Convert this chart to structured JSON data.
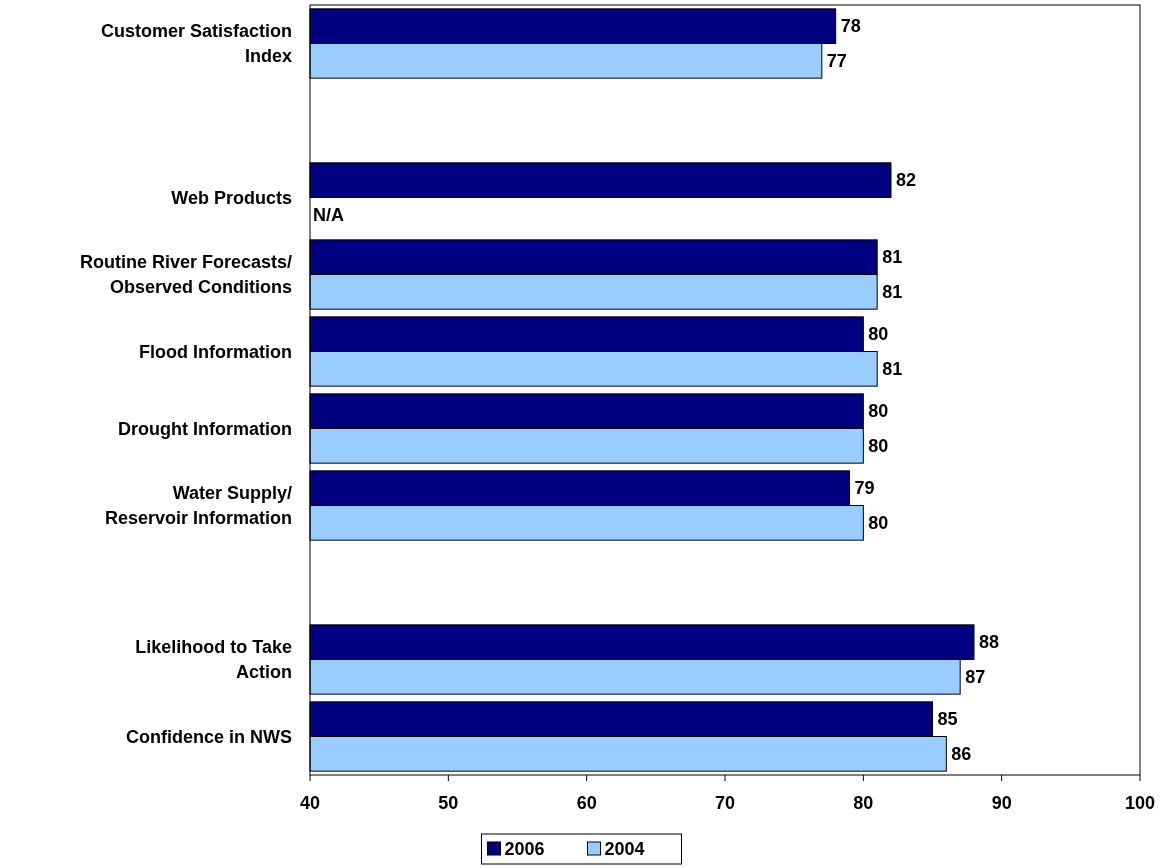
{
  "chart_data": {
    "type": "bar",
    "orientation": "horizontal",
    "categories": [
      "Customer Satisfaction Index",
      null,
      "Web Products",
      "Routine River Forecasts/ Observed Conditions",
      "Flood Information",
      "Drought Information",
      "Water Supply/ Reservoir Information",
      null,
      "Likelihood to Take Action",
      "Confidence in NWS"
    ],
    "series": [
      {
        "name": "2006",
        "color": "#000080",
        "values": [
          78,
          null,
          82,
          81,
          80,
          80,
          79,
          null,
          88,
          85
        ],
        "value_labels": [
          "78",
          null,
          "82",
          "81",
          "80",
          "80",
          "79",
          null,
          "88",
          "85"
        ]
      },
      {
        "name": "2004",
        "color": "#99ccff",
        "values": [
          77,
          null,
          null,
          81,
          81,
          80,
          80,
          null,
          87,
          86
        ],
        "value_labels": [
          "77",
          null,
          "N/A",
          "81",
          "81",
          "80",
          "80",
          null,
          "87",
          "86"
        ]
      }
    ],
    "xlim": [
      40,
      100
    ],
    "xticks": [
      40,
      50,
      60,
      70,
      80,
      90,
      100
    ],
    "grid": false,
    "legend": "bottom"
  }
}
